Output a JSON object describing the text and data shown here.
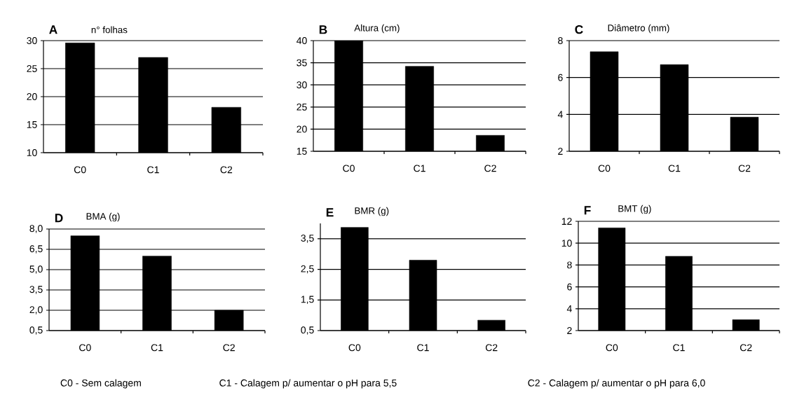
{
  "chart_data": [
    {
      "type": "bar",
      "title": "n° folhas",
      "annotations": [
        "A"
      ],
      "categories": [
        "C0",
        "C1",
        "C2"
      ],
      "values": [
        29.6,
        27,
        18.1
      ],
      "color": "#000000",
      "ylim": [
        10,
        30
      ],
      "yticks": [
        10,
        15,
        20,
        25,
        30
      ],
      "grid": "y"
    },
    {
      "type": "bar",
      "title": "Altura (cm)",
      "annotations": [
        "B"
      ],
      "categories": [
        "C0",
        "C1",
        "C2"
      ],
      "values": [
        40,
        34.2,
        18.6
      ],
      "color": "#000000",
      "ylim": [
        15,
        40
      ],
      "yticks": [
        15,
        20,
        25,
        30,
        35,
        40
      ],
      "grid": "y"
    },
    {
      "type": "bar",
      "title": "Diâmetro (mm)",
      "annotations": [
        "C"
      ],
      "categories": [
        "C0",
        "C1",
        "C2"
      ],
      "values": [
        7.4,
        6.7,
        3.85
      ],
      "color": "#000000",
      "ylim": [
        2,
        8
      ],
      "yticks": [
        2,
        4,
        6,
        8
      ],
      "grid": "y"
    },
    {
      "type": "bar",
      "title": "BMA (g)",
      "annotations": [
        "D",
        "C0 - Sem calagem"
      ],
      "categories": [
        "C0",
        "C1",
        "C2"
      ],
      "values": [
        7.5,
        6.0,
        2.0
      ],
      "color": "#000000",
      "ylim": [
        0.5,
        8
      ],
      "yticks": [
        {
          "value": 0.5,
          "label": "0,5"
        },
        {
          "value": 2,
          "label": "2,0"
        },
        {
          "value": 3.5,
          "label": "3,5"
        },
        {
          "value": 5,
          "label": "5,0"
        },
        {
          "value": 6.5,
          "label": "6,5"
        },
        {
          "value": 8,
          "label": "8,0"
        }
      ],
      "grid": "y"
    },
    {
      "type": "bar",
      "title": "BMR (g)",
      "annotations": [
        "E",
        "C1 - Calagem p/ aumentar o pH para 5,5"
      ],
      "categories": [
        "C0",
        "C1",
        "C2"
      ],
      "values": [
        3.87,
        2.8,
        0.84
      ],
      "color": "#000000",
      "ylim": [
        0.5,
        4
      ],
      "yticks": [
        {
          "value": 0.5,
          "label": "0,5"
        },
        {
          "value": 1.5,
          "label": "1,5"
        },
        {
          "value": 2.5,
          "label": "2,5"
        },
        {
          "value": 3.5,
          "label": "3,5"
        }
      ],
      "grid": "y"
    },
    {
      "type": "bar",
      "title": "BMT (g)",
      "annotations": [
        "F",
        "C2 - Calagem p/ aumentar o pH para 6,0"
      ],
      "categories": [
        "C0",
        "C1",
        "C2"
      ],
      "values": [
        11.4,
        8.8,
        3.0
      ],
      "color": "#000000",
      "ylim": [
        2,
        12
      ],
      "yticks": [
        2,
        4,
        6,
        8,
        10,
        12
      ],
      "grid": "y"
    }
  ]
}
